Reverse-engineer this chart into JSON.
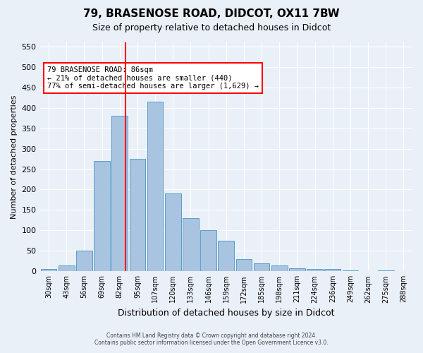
{
  "title": "79, BRASENOSE ROAD, DIDCOT, OX11 7BW",
  "subtitle": "Size of property relative to detached houses in Didcot",
  "xlabel": "Distribution of detached houses by size in Didcot",
  "ylabel": "Number of detached properties",
  "categories": [
    "30sqm",
    "43sqm",
    "56sqm",
    "69sqm",
    "82sqm",
    "95sqm",
    "107sqm",
    "120sqm",
    "133sqm",
    "146sqm",
    "159sqm",
    "172sqm",
    "185sqm",
    "198sqm",
    "211sqm",
    "224sqm",
    "236sqm",
    "249sqm",
    "262sqm",
    "275sqm",
    "288sqm"
  ],
  "values": [
    5,
    15,
    50,
    270,
    380,
    275,
    415,
    190,
    130,
    100,
    75,
    30,
    20,
    15,
    8,
    5,
    5,
    2,
    0,
    2,
    1
  ],
  "bar_color": "#a8c4e0",
  "bar_edge_color": "#5a9ec8",
  "annotation_text": "79 BRASENOSE ROAD: 86sqm\n← 21% of detached houses are smaller (440)\n77% of semi-detached houses are larger (1,629) →",
  "annotation_box_color": "white",
  "annotation_box_edge_color": "red",
  "ylim": [
    0,
    560
  ],
  "yticks": [
    0,
    50,
    100,
    150,
    200,
    250,
    300,
    350,
    400,
    450,
    500,
    550
  ],
  "footer1": "Contains HM Land Registry data © Crown copyright and database right 2024.",
  "footer2": "Contains public sector information licensed under the Open Government Licence v3.0.",
  "bg_color": "#eaf0f8",
  "plot_bg_color": "#eaf0f8",
  "grid_color": "white"
}
